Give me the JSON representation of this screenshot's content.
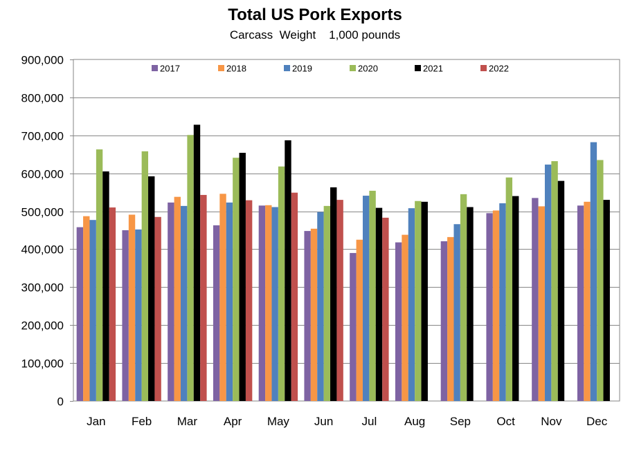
{
  "chart_data": {
    "type": "bar",
    "title": "Total US Pork Exports",
    "subtitle": "Carcass  Weight    1,000 pounds",
    "categories": [
      "Jan",
      "Feb",
      "Mar",
      "Apr",
      "May",
      "Jun",
      "Jul",
      "Aug",
      "Sep",
      "Oct",
      "Nov",
      "Dec"
    ],
    "ylim": [
      0,
      900000
    ],
    "yticks": [
      0,
      100000,
      200000,
      300000,
      400000,
      500000,
      600000,
      700000,
      800000,
      900000
    ],
    "ytick_labels": [
      "0",
      "100,000",
      "200,000",
      "300,000",
      "400,000",
      "500,000",
      "600,000",
      "700,000",
      "800,000",
      "900,000"
    ],
    "grid": true,
    "legend_position": "top-center",
    "series": [
      {
        "name": "2017",
        "color": "#7e63a3",
        "values": [
          458000,
          450000,
          523000,
          463000,
          515000,
          448000,
          390000,
          418000,
          421000,
          495000,
          535000,
          515000
        ]
      },
      {
        "name": "2018",
        "color": "#f79646",
        "values": [
          487000,
          491000,
          538000,
          546000,
          516000,
          454000,
          425000,
          438000,
          432000,
          502000,
          513000,
          525000
        ]
      },
      {
        "name": "2019",
        "color": "#4f81bd",
        "values": [
          477000,
          452000,
          514000,
          523000,
          511000,
          498000,
          541000,
          508000,
          466000,
          521000,
          623000,
          682000
        ]
      },
      {
        "name": "2020",
        "color": "#9bbb59",
        "values": [
          663000,
          658000,
          701000,
          641000,
          618000,
          514000,
          554000,
          527000,
          545000,
          589000,
          632000,
          635000
        ]
      },
      {
        "name": "2021",
        "color": "#000000",
        "values": [
          605000,
          592000,
          728000,
          654000,
          687000,
          563000,
          509000,
          525000,
          511000,
          540000,
          580000,
          530000
        ]
      },
      {
        "name": "2022",
        "color": "#c0504d",
        "values": [
          510000,
          485000,
          543000,
          529000,
          549000,
          530000,
          483000,
          null,
          null,
          null,
          null,
          null
        ]
      }
    ]
  }
}
